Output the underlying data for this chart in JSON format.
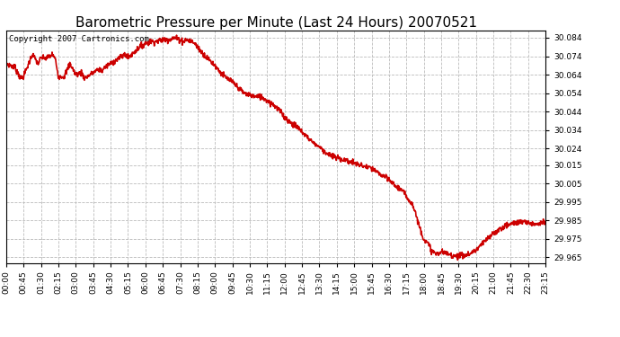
{
  "title": "Barometric Pressure per Minute (Last 24 Hours) 20070521",
  "copyright": "Copyright 2007 Cartronics.com",
  "line_color": "#cc0000",
  "background_color": "#ffffff",
  "plot_bg_color": "#ffffff",
  "grid_color": "#bbbbbb",
  "ylim": [
    29.962,
    30.088
  ],
  "yticks": [
    30.084,
    30.074,
    30.064,
    30.054,
    30.044,
    30.034,
    30.024,
    30.015,
    30.005,
    29.995,
    29.985,
    29.975,
    29.965
  ],
  "xtick_labels": [
    "00:00",
    "00:45",
    "01:30",
    "02:15",
    "03:00",
    "03:45",
    "04:30",
    "05:15",
    "06:00",
    "06:45",
    "07:30",
    "08:15",
    "09:00",
    "09:45",
    "10:30",
    "11:15",
    "12:00",
    "12:45",
    "13:30",
    "14:15",
    "15:00",
    "15:45",
    "16:30",
    "17:15",
    "18:00",
    "18:45",
    "19:30",
    "20:15",
    "21:00",
    "21:45",
    "22:30",
    "23:15"
  ],
  "title_fontsize": 11,
  "tick_fontsize": 6.5,
  "copyright_fontsize": 6.5,
  "linewidth": 1.2,
  "keypoints_x": [
    0,
    0.375,
    0.625,
    0.75,
    1.0,
    1.125,
    1.375,
    1.5,
    1.75,
    2.0,
    2.125,
    2.25,
    2.5,
    2.75,
    3.0,
    3.25,
    3.375,
    3.5,
    3.75,
    4.0,
    4.125,
    4.25,
    4.5,
    4.75,
    5.0,
    5.125,
    5.25,
    5.5,
    5.75,
    6.0,
    6.25,
    6.5,
    6.75,
    7.0,
    7.25,
    7.5,
    7.625,
    7.75,
    8.0,
    8.125,
    8.25,
    8.5,
    8.75,
    9.0,
    9.25,
    9.5,
    9.75,
    10.0,
    10.25,
    10.5,
    10.75,
    11.0,
    11.25,
    11.5,
    11.75,
    12.0,
    12.25,
    12.5,
    12.75,
    13.0,
    13.25,
    13.5,
    13.75,
    14.0,
    14.25,
    14.5,
    14.75,
    15.0,
    15.25,
    15.5,
    15.75,
    16.0,
    16.25,
    16.5,
    16.75,
    17.0,
    17.25,
    17.5,
    17.625,
    17.75,
    18.0,
    18.125,
    18.25,
    18.375,
    18.5,
    18.625,
    18.75,
    19.0,
    19.25,
    19.5,
    19.75,
    20.0,
    20.25,
    20.5,
    20.75,
    21.0,
    21.25,
    21.5,
    21.75,
    22.0,
    22.25,
    22.5,
    22.75,
    23.0,
    23.25
  ],
  "keypoints_y": [
    30.07,
    30.068,
    30.062,
    30.063,
    30.071,
    30.075,
    30.07,
    30.073,
    30.073,
    30.075,
    30.072,
    30.063,
    30.063,
    30.07,
    30.064,
    30.065,
    30.062,
    30.063,
    30.065,
    30.067,
    30.066,
    30.068,
    30.07,
    30.072,
    30.074,
    30.075,
    30.073,
    30.076,
    30.079,
    30.081,
    30.082,
    30.082,
    30.083,
    30.083,
    30.084,
    30.083,
    30.082,
    30.083,
    30.082,
    30.081,
    30.079,
    30.075,
    30.072,
    30.069,
    30.065,
    30.062,
    30.06,
    30.057,
    30.054,
    30.053,
    30.052,
    30.052,
    30.05,
    30.048,
    30.045,
    30.041,
    30.038,
    30.036,
    30.033,
    30.03,
    30.027,
    30.025,
    30.022,
    30.02,
    30.019,
    30.018,
    30.017,
    30.016,
    30.015,
    30.014,
    30.013,
    30.011,
    30.009,
    30.007,
    30.004,
    30.002,
    29.998,
    29.994,
    29.99,
    29.984,
    29.975,
    29.973,
    29.971,
    29.968,
    29.967,
    29.967,
    29.968,
    29.967,
    29.966,
    29.966,
    29.966,
    29.967,
    29.969,
    29.972,
    29.975,
    29.978,
    29.98,
    29.982,
    29.983,
    29.984,
    29.984,
    29.984,
    29.983,
    29.984,
    29.984
  ]
}
